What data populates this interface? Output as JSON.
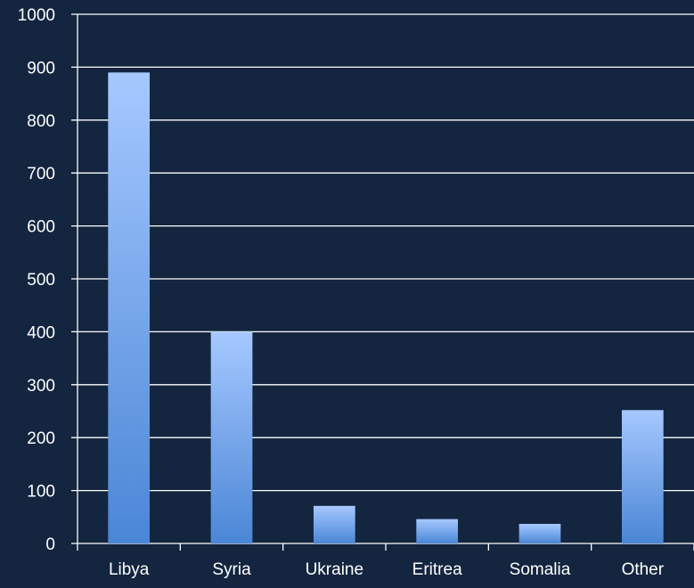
{
  "chart_data": {
    "type": "bar",
    "categories": [
      "Libya",
      "Syria",
      "Ukraine",
      "Eritrea",
      "Somalia",
      "Other"
    ],
    "values": [
      890,
      400,
      71,
      46,
      37,
      252
    ],
    "title": "",
    "xlabel": "",
    "ylabel": "",
    "ylim": [
      0,
      1000
    ],
    "yticks": [
      "0",
      "100",
      "200",
      "300",
      "400",
      "500",
      "600",
      "700",
      "800",
      "900",
      "1000"
    ],
    "grid": true,
    "legend": "none",
    "colors": {
      "background": "#13253f",
      "grid": "#ffffff",
      "bar_top": "#a6c8ff",
      "bar_bottom": "#4a86d6",
      "text": "#ffffff"
    }
  }
}
